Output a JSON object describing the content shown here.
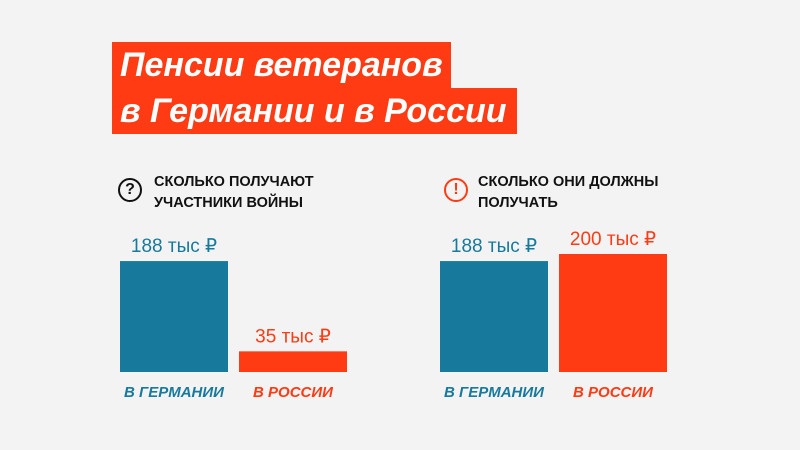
{
  "title": {
    "line1": "Пенсии ветеранов",
    "line2": "в Германии и в России"
  },
  "colors": {
    "accent": "#ff3b14",
    "germany": "#177a9c",
    "russia": "#ff3b14",
    "text": "#111111",
    "background": "#f3f3f3"
  },
  "icons": {
    "left": "question-circle-icon",
    "right": "exclamation-circle-icon"
  },
  "left_panel": {
    "icon_glyph": "?",
    "heading_line1": "сколько получают",
    "heading_line2": "участники войны"
  },
  "right_panel": {
    "icon_glyph": "!",
    "heading_line1": "сколько они должны",
    "heading_line2": "получать"
  },
  "chart_data": [
    {
      "type": "bar",
      "title": "сколько получают участники войны",
      "categories": [
        "в Германии",
        "в России"
      ],
      "values": [
        188,
        35
      ],
      "value_labels": [
        "188 тыс ₽",
        "35 тыс ₽"
      ],
      "colors": [
        "#177a9c",
        "#ff3b14"
      ],
      "ylim": [
        0,
        200
      ],
      "grid": false
    },
    {
      "type": "bar",
      "title": "сколько они должны получать",
      "categories": [
        "в Германии",
        "в России"
      ],
      "values": [
        188,
        200
      ],
      "value_labels": [
        "188 тыс ₽",
        "200 тыс ₽"
      ],
      "colors": [
        "#177a9c",
        "#ff3b14"
      ],
      "ylim": [
        0,
        200
      ],
      "grid": false
    }
  ]
}
